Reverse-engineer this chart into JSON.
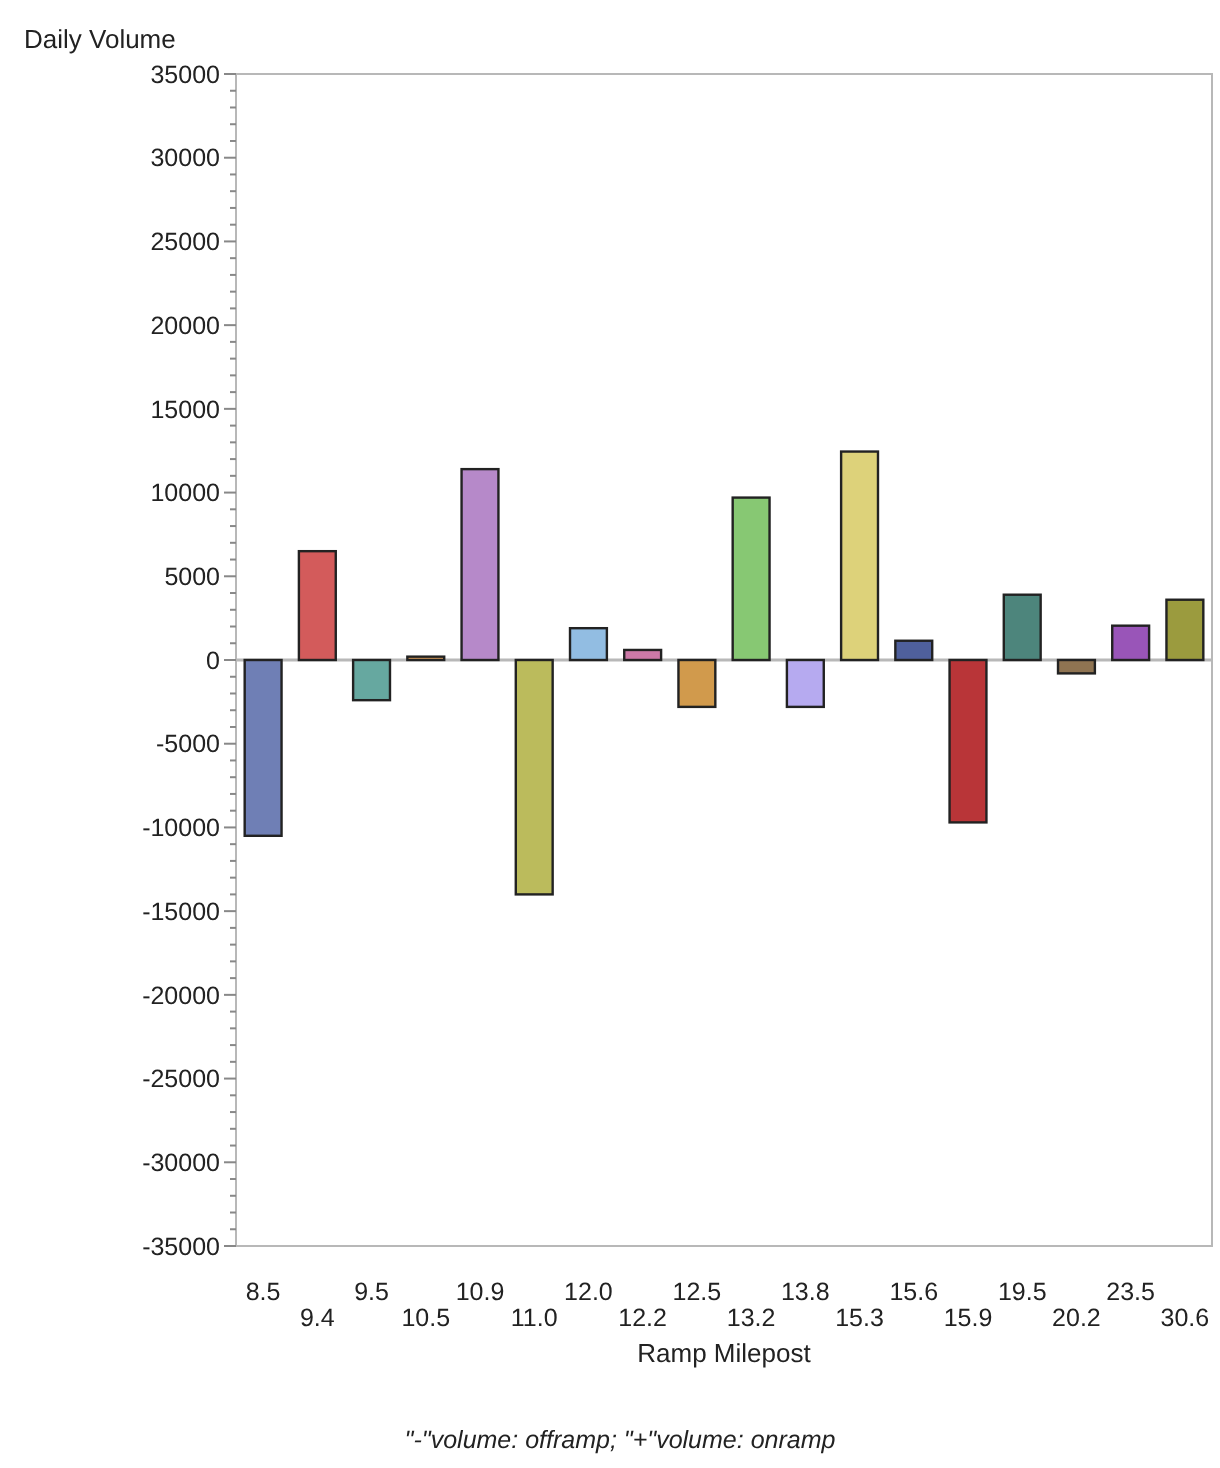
{
  "chart_data": {
    "type": "bar",
    "ylabel": "Daily Volume",
    "xlabel": "Ramp Milepost",
    "annotations": [
      "\"-\"volume: offramp; \"+\"volume: onramp"
    ],
    "categories": [
      "8.5",
      "9.4",
      "9.5",
      "10.5",
      "10.9",
      "11.0",
      "12.0",
      "12.2",
      "12.5",
      "13.2",
      "13.8",
      "15.3",
      "15.6",
      "15.9",
      "19.5",
      "20.2",
      "23.5",
      "30.6"
    ],
    "values": [
      -10500,
      6500,
      -2400,
      200,
      11400,
      -14000,
      1900,
      600,
      -2800,
      9700,
      -2800,
      12450,
      1150,
      -9700,
      3900,
      -800,
      2050,
      3600
    ],
    "colors": [
      "#6f7fb5",
      "#d35b5b",
      "#66a8a0",
      "#d69a5a",
      "#b689c9",
      "#bbbb5c",
      "#92bde2",
      "#cc79a7",
      "#d19a4c",
      "#87c873",
      "#b6aaf0",
      "#ddd27a",
      "#4f609c",
      "#b93538",
      "#4d857c",
      "#8f7452",
      "#9955b8",
      "#9b9b3e"
    ],
    "ylim": [
      -35000,
      35000
    ],
    "yticks": [
      -35000,
      {
        "value": -34000,
        "label": null
      },
      {
        "value": -33000,
        "label": null
      },
      {
        "value": -32000,
        "label": null
      },
      {
        "value": -31000,
        "label": null
      },
      -30000,
      {
        "value": -29000,
        "label": null
      },
      {
        "value": -28000,
        "label": null
      },
      {
        "value": -27000,
        "label": null
      },
      {
        "value": -26000,
        "label": null
      },
      -25000,
      {
        "value": -24000,
        "label": null
      },
      {
        "value": -23000,
        "label": null
      },
      {
        "value": -22000,
        "label": null
      },
      {
        "value": -21000,
        "label": null
      },
      -20000,
      {
        "value": -19000,
        "label": null
      },
      {
        "value": -18000,
        "label": null
      },
      {
        "value": -17000,
        "label": null
      },
      {
        "value": -16000,
        "label": null
      },
      -15000,
      {
        "value": -14000,
        "label": null
      },
      {
        "value": -13000,
        "label": null
      },
      {
        "value": -12000,
        "label": null
      },
      {
        "value": -11000,
        "label": null
      },
      -10000,
      {
        "value": -9000,
        "label": null
      },
      {
        "value": -8000,
        "label": null
      },
      {
        "value": -7000,
        "label": null
      },
      {
        "value": -6000,
        "label": null
      },
      -5000,
      {
        "value": -4000,
        "label": null
      },
      {
        "value": -3000,
        "label": null
      },
      {
        "value": -2000,
        "label": null
      },
      {
        "value": -1000,
        "label": null
      },
      0,
      {
        "value": 1000,
        "label": null
      },
      {
        "value": 2000,
        "label": null
      },
      {
        "value": 3000,
        "label": null
      },
      {
        "value": 4000,
        "label": null
      },
      5000,
      {
        "value": 6000,
        "label": null
      },
      {
        "value": 7000,
        "label": null
      },
      {
        "value": 8000,
        "label": null
      },
      {
        "value": 9000,
        "label": null
      },
      10000,
      {
        "value": 11000,
        "label": null
      },
      {
        "value": 12000,
        "label": null
      },
      {
        "value": 13000,
        "label": null
      },
      {
        "value": 14000,
        "label": null
      },
      15000,
      {
        "value": 16000,
        "label": null
      },
      {
        "value": 17000,
        "label": null
      },
      {
        "value": 18000,
        "label": null
      },
      {
        "value": 19000,
        "label": null
      },
      20000,
      {
        "value": 21000,
        "label": null
      },
      {
        "value": 22000,
        "label": null
      },
      {
        "value": 23000,
        "label": null
      },
      {
        "value": 24000,
        "label": null
      },
      25000,
      {
        "value": 26000,
        "label": null
      },
      {
        "value": 27000,
        "label": null
      },
      {
        "value": 28000,
        "label": null
      },
      {
        "value": 29000,
        "label": null
      },
      30000,
      {
        "value": 31000,
        "label": null
      },
      {
        "value": 32000,
        "label": null
      },
      {
        "value": 33000,
        "label": null
      },
      {
        "value": 34000,
        "label": null
      },
      35000
    ]
  }
}
